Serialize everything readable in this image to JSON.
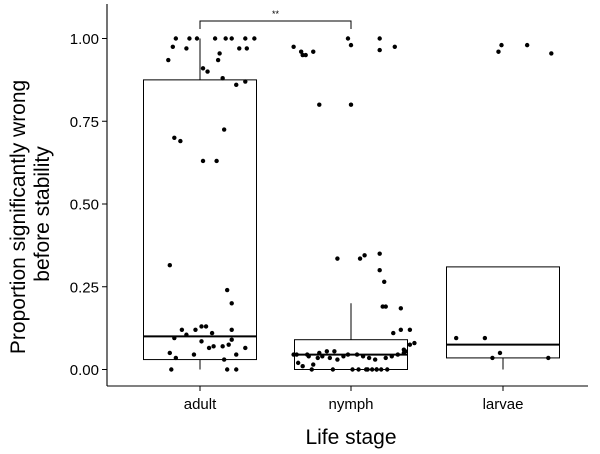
{
  "chart_data": {
    "type": "box",
    "title": "",
    "xlabel": "Life stage",
    "ylabel_lines": [
      "Proportion significantly wrong",
      "before stability"
    ],
    "ylim": [
      -0.05,
      1.1
    ],
    "yticks": [
      0.0,
      0.25,
      0.5,
      0.75,
      1.0
    ],
    "ytick_labels": [
      "0.00",
      "0.25",
      "0.50",
      "0.75",
      "1.00"
    ],
    "categories": [
      "adult",
      "nymph",
      "larvae"
    ],
    "boxes": [
      {
        "category": "adult",
        "q1": 0.03,
        "median": 0.1,
        "q3": 0.875,
        "whisker_low": 0.0,
        "whisker_high": 1.0
      },
      {
        "category": "nymph",
        "q1": 0.0,
        "median": 0.045,
        "q3": 0.09,
        "whisker_low": 0.0,
        "whisker_high": 0.2
      },
      {
        "category": "larvae",
        "q1": 0.035,
        "median": 0.075,
        "q3": 0.31,
        "whisker_low": 0.0,
        "whisker_high": 0.31
      }
    ],
    "points": [
      {
        "category": "adult",
        "jitter": [
          -0.16,
          -0.07,
          -0.02,
          0.1,
          0.17,
          0.21,
          0.3,
          0.36,
          -0.21,
          -0.18,
          -0.09,
          0.02,
          0.13,
          0.12,
          0.26,
          0.31,
          0.05,
          0.15,
          0.24,
          0.3,
          -0.17,
          -0.13,
          0.02,
          0.11,
          0.16,
          0.18,
          0.21,
          -0.03,
          0.04,
          0.01,
          -0.12,
          -0.09,
          0.08,
          -0.17,
          0.01,
          0.06,
          0.09,
          0.19,
          0.21,
          0.15,
          0.3,
          0.24,
          -0.2,
          -0.04,
          -0.16,
          0.16,
          0.24,
          -0.19,
          0.18,
          -0.2,
          0.21
        ],
        "values": [
          1.0,
          1.0,
          1.0,
          1.0,
          1.0,
          1.0,
          1.0,
          1.0,
          0.935,
          0.975,
          0.97,
          0.91,
          0.955,
          0.935,
          0.97,
          0.97,
          0.9,
          0.88,
          0.86,
          0.87,
          0.7,
          0.69,
          0.63,
          0.63,
          0.725,
          0.24,
          0.12,
          0.12,
          0.13,
          0.13,
          0.12,
          0.105,
          0.11,
          0.095,
          0.085,
          0.065,
          0.07,
          0.075,
          0.09,
          0.07,
          0.065,
          0.045,
          0.05,
          0.045,
          0.035,
          0.03,
          0.0,
          0.0,
          0.0,
          0.315,
          0.2
        ]
      },
      {
        "category": "nymph",
        "jitter": [
          -0.38,
          -0.33,
          -0.32,
          -0.3,
          -0.25,
          -0.02,
          0.0,
          0.19,
          0.19,
          0.29,
          0.0,
          -0.21,
          0.06,
          0.09,
          -0.09,
          0.19,
          0.19,
          0.22,
          0.21,
          0.23,
          0.33,
          0.33,
          0.39,
          0.28,
          0.42,
          0.39,
          0.35,
          0.36,
          -0.16,
          -0.11,
          -0.21,
          -0.29,
          -0.36,
          -0.38,
          -0.28,
          -0.22,
          -0.19,
          -0.14,
          -0.09,
          -0.05,
          -0.02,
          0.04,
          0.08,
          0.12,
          0.16,
          0.23,
          0.27,
          0.31,
          0.35,
          0.01,
          0.05,
          0.11,
          0.17,
          -0.32,
          -0.25,
          -0.35,
          -0.26,
          -0.12,
          0.1,
          0.14,
          0.17,
          0.2,
          0.24
        ],
        "values": [
          0.975,
          0.96,
          0.95,
          0.95,
          0.96,
          1.0,
          0.98,
          1.0,
          0.965,
          0.975,
          0.8,
          0.8,
          0.335,
          0.345,
          0.335,
          0.35,
          0.3,
          0.265,
          0.19,
          0.19,
          0.185,
          0.12,
          0.12,
          0.11,
          0.08,
          0.075,
          0.06,
          0.055,
          0.055,
          0.055,
          0.05,
          0.045,
          0.045,
          0.045,
          0.04,
          0.035,
          0.04,
          0.035,
          0.03,
          0.04,
          0.045,
          0.045,
          0.04,
          0.035,
          0.03,
          0.035,
          0.04,
          0.045,
          0.05,
          0.0,
          0.0,
          0.0,
          0.0,
          0.01,
          0.015,
          0.02,
          0.0,
          0.0,
          0.0,
          0.0,
          0.0,
          0.0,
          0.0
        ]
      },
      {
        "category": "larvae",
        "jitter": [
          -0.03,
          -0.01,
          0.16,
          0.32,
          -0.02,
          -0.12,
          -0.07,
          0.3,
          -0.31
        ],
        "values": [
          0.96,
          0.98,
          0.98,
          0.955,
          0.05,
          0.095,
          0.035,
          0.035,
          0.095
        ]
      }
    ],
    "significance": [
      {
        "from": "adult",
        "to": "nymph",
        "label": "**"
      }
    ]
  }
}
